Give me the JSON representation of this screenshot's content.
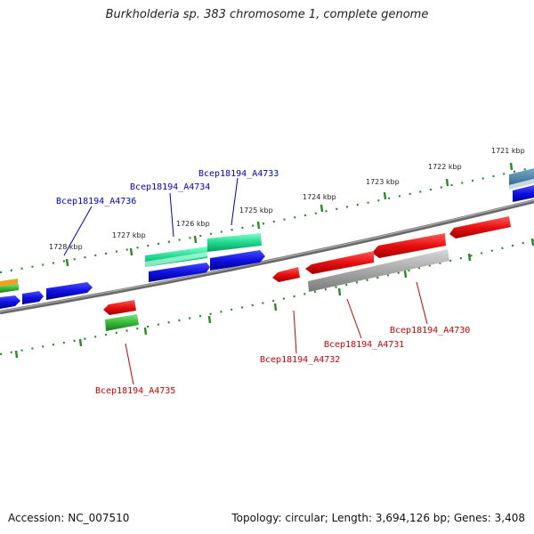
{
  "title": "Burkholderia sp. 383 chromosome 1, complete genome",
  "footer": {
    "accession": "Accession: NC_007510",
    "summary": "Topology: circular; Length: 3,694,126 bp; Genes: 3,408"
  },
  "scale": [
    "1721 kbp",
    "1722 kbp",
    "1723 kbp",
    "1724 kbp",
    "1725 kbp",
    "1726 kbp",
    "1727 kbp",
    "1728 kbp"
  ],
  "gene_labels": {
    "A4733": "Bcep18194_A4733",
    "A4734": "Bcep18194_A4734",
    "A4736": "Bcep18194_A4736",
    "A4735": "Bcep18194_A4735",
    "A4732": "Bcep18194_A4732",
    "A4731": "Bcep18194_A4731",
    "A4730": "Bcep18194_A4730"
  },
  "colors": {
    "forward_label": "#0000cc",
    "reverse_label": "#cc0000",
    "backbone": "#777777",
    "blue_gene": "#1010e0",
    "red_gene": "#e01010",
    "teal_gene": "#20d890",
    "gray_gene": "#a8a8a8",
    "green_gene": "#38b838",
    "scale_tick": "#2a8a2a"
  }
}
